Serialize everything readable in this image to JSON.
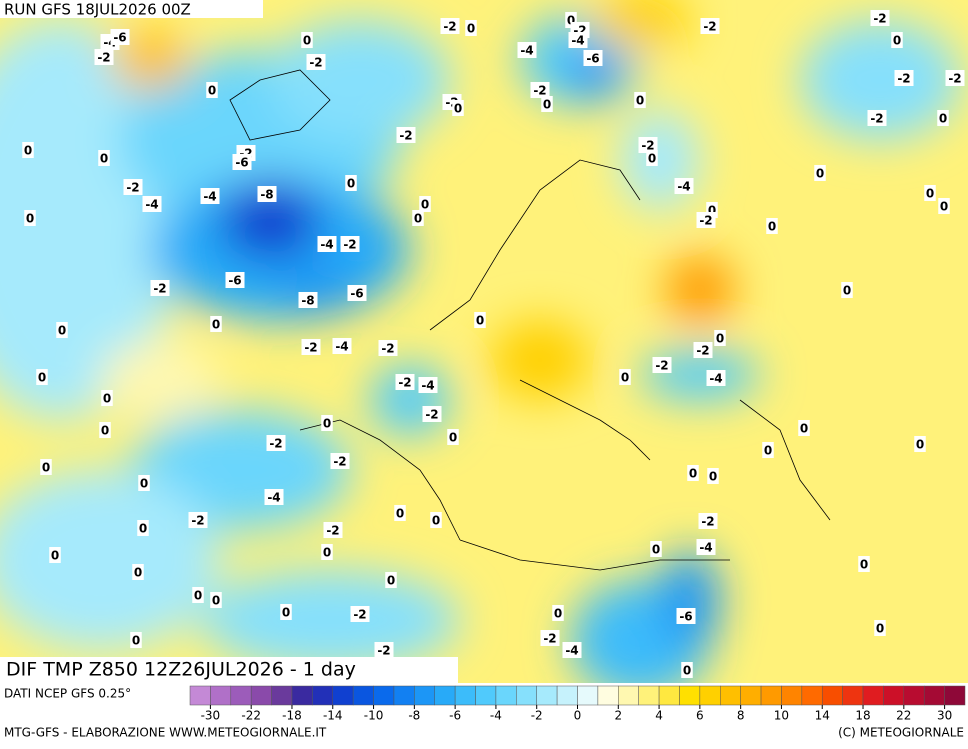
{
  "header": {
    "run": "RUN GFS 18JUL2026 00Z"
  },
  "title": "DIF TMP Z850 12Z26JUL2026 - 1 day",
  "source": "DATI NCEP GFS 0.25°",
  "credit_left": "MTG-GFS - ELABORAZIONE WWW.METEOGIORNALE.IT",
  "credit_right": "(C) METEOGIORNALE",
  "legend": {
    "ticks": [
      -30,
      -22,
      -18,
      -14,
      -10,
      -8,
      -6,
      -4,
      -2,
      0,
      2,
      4,
      6,
      8,
      10,
      14,
      18,
      22,
      30
    ],
    "colors": [
      "#c489d6",
      "#b070c8",
      "#9c5cba",
      "#8a4aaa",
      "#6a3a9c",
      "#3a2aa0",
      "#2230b8",
      "#1040d0",
      "#0a56e0",
      "#0a6aec",
      "#1280f2",
      "#1c96f6",
      "#28aaf8",
      "#3cbcfa",
      "#50cafc",
      "#6ad6fc",
      "#86e0fc",
      "#a6eafc",
      "#c6f2fc",
      "#e6fafc",
      "#fffde0",
      "#fff8b0",
      "#fff27a",
      "#ffe840",
      "#ffe000",
      "#ffd000",
      "#ffbf00",
      "#ffae00",
      "#ff9a00",
      "#ff8400",
      "#ff6a00",
      "#f84e00",
      "#ee3410",
      "#e01c20",
      "#cc1028",
      "#b80c30",
      "#a40a34",
      "#8e0838"
    ]
  },
  "map_labels": [
    "-4",
    "-6",
    "-2",
    "0",
    "-2",
    "-2",
    "0",
    "0",
    "-2",
    "-4",
    "-4",
    "-6",
    "-2",
    "-2",
    "0",
    "-2",
    "-2",
    "0",
    "-2",
    "-2",
    "0",
    "0",
    "0",
    "-2",
    "0",
    "-2",
    "-2",
    "0",
    "0",
    "0",
    "-2",
    "-6",
    "-2",
    "-4",
    "-4",
    "-8",
    "0",
    "-4",
    "0",
    "0",
    "0",
    "0",
    "0",
    "-2",
    "0",
    "0",
    "0",
    "-4",
    "-2",
    "-6",
    "-2",
    "-6",
    "-8",
    "0",
    "0",
    "0",
    "0",
    "-2",
    "-4",
    "-2",
    "-2",
    "0",
    "-2",
    "-4",
    "0",
    "0",
    "-2",
    "-4",
    "0",
    "-2",
    "0",
    "0",
    "0",
    "0",
    "-2",
    "0",
    "0",
    "-2",
    "0",
    "0",
    "0",
    "0",
    "-4",
    "0",
    "0",
    "-2",
    "-2",
    "0",
    "-2",
    "-4",
    "0",
    "0",
    "0",
    "0",
    "0",
    "0",
    "0",
    "0",
    "0",
    "-2",
    "0",
    "-6",
    "0",
    "-2",
    "-4",
    "0",
    "-2",
    "0"
  ]
}
